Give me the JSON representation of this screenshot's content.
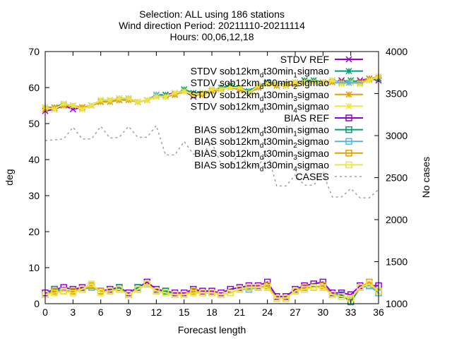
{
  "chart_data": {
    "type": "line",
    "title_lines": [
      "Selection: ALL using   186 stations",
      "Wind direction   Period: 20211110-20211114",
      "Hours: 00,06,12,18"
    ],
    "xlabel": "Forecast length",
    "ylabel": "deg",
    "y2label": "No cases",
    "xlim": [
      0,
      36
    ],
    "ylim": [
      0,
      70
    ],
    "y2lim": [
      1000,
      4000
    ],
    "xticks": [
      "0",
      "3",
      "6",
      "9",
      "12",
      "15",
      "18",
      "21",
      "24",
      "27",
      "30",
      "33",
      "36"
    ],
    "yticks": [
      "0",
      "10",
      "20",
      "30",
      "40",
      "50",
      "60",
      "70"
    ],
    "y2ticks": [
      "1000",
      "1500",
      "2000",
      "2500",
      "3000",
      "3500",
      "4000"
    ],
    "legend_position": "top-right",
    "x": [
      0,
      1,
      2,
      3,
      4,
      5,
      6,
      7,
      8,
      9,
      10,
      11,
      12,
      13,
      14,
      15,
      16,
      17,
      18,
      19,
      20,
      21,
      22,
      23,
      24,
      25,
      26,
      27,
      28,
      29,
      30,
      31,
      32,
      33,
      34,
      35,
      36
    ],
    "series": [
      {
        "name": "STDV REF",
        "axis": "y1",
        "color": "#9400d3",
        "marker": "x",
        "values": [
          53.5,
          54,
          55,
          54,
          54.5,
          55,
          56,
          56.5,
          56.5,
          57,
          56,
          56.5,
          57.5,
          58,
          58.5,
          59,
          57.5,
          58.5,
          59,
          59.5,
          60,
          59.5,
          58.5,
          60,
          61.5,
          61,
          60.5,
          61,
          62,
          61.5,
          61.5,
          61.5,
          62,
          61.5,
          62,
          62.5,
          62
        ]
      },
      {
        "name": "STDV sob12km_dt30min_1sigmao",
        "axis": "y1",
        "color": "#009e73",
        "marker": "asterisk",
        "values": [
          54.5,
          54.5,
          55.5,
          55,
          54.5,
          55,
          56.5,
          56.5,
          57,
          57,
          56,
          56.5,
          58,
          58,
          58,
          59.5,
          58.5,
          58.5,
          59,
          60,
          60.5,
          60,
          59,
          60.5,
          61.5,
          61,
          61,
          61,
          62,
          62,
          61.5,
          62,
          61.5,
          62,
          61.5,
          62.5,
          62.5
        ]
      },
      {
        "name": "STDV sob12km_dt30min_2sigmao",
        "axis": "y1",
        "color": "#56b4e9",
        "marker": "asterisk",
        "values": [
          54.5,
          54,
          55.5,
          55,
          54,
          55,
          56,
          56.5,
          56.5,
          57,
          56,
          56.5,
          58,
          57.5,
          58,
          59,
          58,
          58.5,
          59.5,
          59.5,
          60,
          60,
          58.5,
          60.5,
          61,
          61,
          60.5,
          61.5,
          61.5,
          61.5,
          61.5,
          62,
          61.5,
          61.5,
          61,
          62,
          63
        ]
      },
      {
        "name": "STDV sob12km_dt30min_3sigmao",
        "axis": "y1",
        "color": "#e69f00",
        "marker": "asterisk",
        "values": [
          54,
          54.5,
          55,
          55,
          54.5,
          55,
          56,
          56,
          56.5,
          56.5,
          56,
          56.5,
          57.5,
          57.5,
          58,
          59,
          58,
          58,
          59,
          59.5,
          60,
          59.5,
          58.5,
          60,
          61,
          60.5,
          61,
          61,
          61.5,
          61.5,
          61.5,
          61.5,
          61.5,
          61.5,
          61.5,
          62.5,
          63
        ]
      },
      {
        "name": "STDV sob12km_dt30min_4sigmao",
        "axis": "y1",
        "color": "#f0e442",
        "marker": "asterisk",
        "values": [
          54.5,
          54,
          55.5,
          55,
          54,
          55,
          56.5,
          56.5,
          57,
          57,
          56,
          56.5,
          57.5,
          57.5,
          58.5,
          59,
          58,
          58.5,
          59.5,
          59.5,
          60,
          60,
          58.5,
          60.5,
          61,
          61,
          60.5,
          61.5,
          61.5,
          61.5,
          61.5,
          62,
          61,
          61.5,
          61,
          62,
          63
        ]
      },
      {
        "name": "BIAS REF",
        "axis": "y1",
        "color": "#9400d3",
        "marker": "square",
        "values": [
          3,
          4,
          4.5,
          4,
          4.5,
          5,
          3.5,
          4,
          4.5,
          3,
          4.5,
          6,
          4,
          3.5,
          3,
          3,
          4,
          3.5,
          3.5,
          3,
          4,
          4.5,
          5,
          5,
          6,
          2,
          2,
          4,
          5,
          5.5,
          6,
          3,
          3,
          2.5,
          5,
          5,
          5
        ]
      },
      {
        "name": "BIAS sob12km_dt30min_1sigmao",
        "axis": "y1",
        "color": "#009e73",
        "marker": "square",
        "values": [
          2.5,
          4,
          3.5,
          3.5,
          4,
          5,
          3.5,
          3.5,
          4.5,
          2.5,
          4.5,
          5.5,
          3.5,
          3.5,
          2.5,
          2.5,
          3.5,
          3,
          3,
          2.5,
          3,
          4,
          4.5,
          4.5,
          5,
          1.5,
          1.5,
          3.5,
          4.5,
          4.5,
          5,
          2.5,
          2.5,
          0.5,
          4.5,
          5,
          3
        ]
      },
      {
        "name": "BIAS sob12km_dt30min_2sigmao",
        "axis": "y1",
        "color": "#56b4e9",
        "marker": "square",
        "values": [
          2.5,
          3.5,
          3.5,
          3.5,
          4,
          4.5,
          3.5,
          3.5,
          4,
          2.5,
          4,
          5.5,
          3.5,
          3,
          2.5,
          2.5,
          3,
          3,
          3,
          2.5,
          3,
          4,
          4,
          4.5,
          4.5,
          1.5,
          1.5,
          3.5,
          4,
          4.5,
          4.5,
          2.5,
          2,
          1.5,
          4.5,
          5,
          3
        ]
      },
      {
        "name": "BIAS sob12km_dt30min_3sigmao",
        "axis": "y1",
        "color": "#e69f00",
        "marker": "square",
        "values": [
          2.5,
          3.5,
          3.5,
          3.5,
          4,
          5,
          3.5,
          3.5,
          4,
          2.5,
          4,
          5.5,
          3.5,
          3,
          2.5,
          2.5,
          3.5,
          3,
          3,
          2.5,
          3,
          4,
          4.5,
          4.5,
          5,
          1.5,
          1.5,
          3.5,
          4.5,
          4.5,
          5,
          2.5,
          2,
          1.5,
          4.5,
          6,
          3.5
        ]
      },
      {
        "name": "BIAS sob12km_dt30min_4sigmao",
        "axis": "y1",
        "color": "#f0e442",
        "marker": "square",
        "values": [
          2.5,
          3,
          3.5,
          3,
          4,
          5.5,
          3,
          3.5,
          4,
          2.5,
          4,
          5.5,
          3.5,
          3,
          2.5,
          2.5,
          3,
          3,
          3,
          2.5,
          3,
          4,
          4.5,
          4.5,
          4.5,
          1.5,
          1.5,
          3.5,
          4,
          4.5,
          4.5,
          2.5,
          2,
          1.5,
          4.5,
          5.5,
          3.5
        ]
      },
      {
        "name": "CASES",
        "axis": "y2",
        "color": "#a0a0a0",
        "marker": "none",
        "dash": true,
        "values": [
          2940,
          2950,
          2960,
          3100,
          2960,
          2960,
          3110,
          2970,
          2980,
          3110,
          2980,
          2980,
          3120,
          2770,
          2770,
          2930,
          2780,
          2780,
          2920,
          2660,
          2660,
          2780,
          2640,
          2640,
          2790,
          2400,
          2400,
          2530,
          2410,
          2410,
          2560,
          2270,
          2270,
          2370,
          2260,
          2260,
          2360
        ]
      }
    ]
  }
}
